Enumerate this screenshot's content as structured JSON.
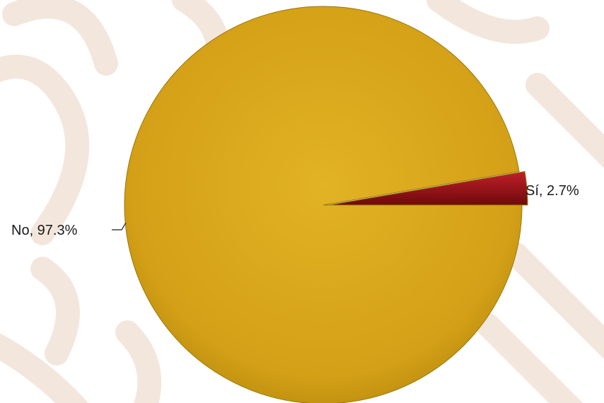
{
  "chart_data": {
    "type": "pie",
    "title": "",
    "slices": [
      {
        "label": "Sí",
        "value": 2.7,
        "display": "Sí, 2.7%",
        "color": "#8B1010"
      },
      {
        "label": "No",
        "value": 97.3,
        "display": "No, 97.3%",
        "color": "#D4A017"
      }
    ],
    "legend": "none",
    "data_labels": "outside"
  },
  "theme": {
    "background": "#ffffff",
    "watermark_color": "#f3e7dd",
    "edge_color": "#9a7a0a"
  }
}
